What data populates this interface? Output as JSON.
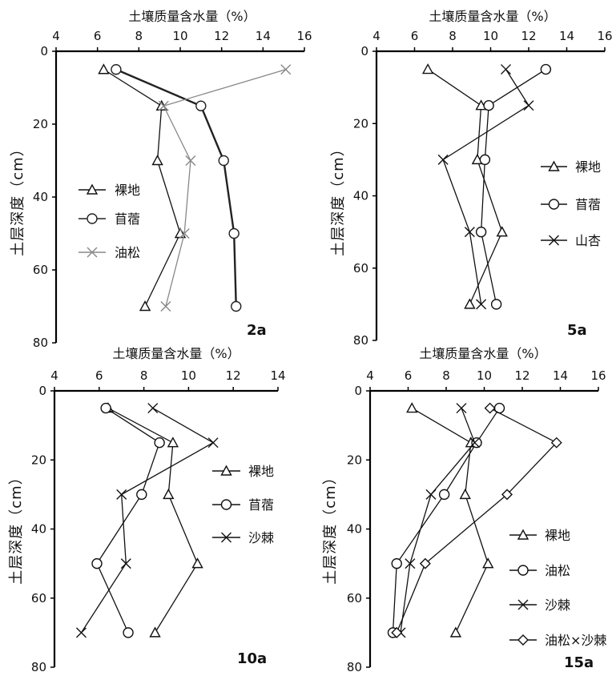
{
  "chart_data": [
    {
      "type": "line",
      "panel_label": "2a",
      "x_axis_title": "土壤质量含水量（%）",
      "y_axis_title": "土层深度（cm）",
      "x_ticks": [
        "4",
        "6",
        "8",
        "10",
        "12",
        "14",
        "16"
      ],
      "y_ticks": [
        "0",
        "20",
        "40",
        "60",
        "80"
      ],
      "xlim": [
        4,
        16
      ],
      "ylim": [
        0,
        80
      ],
      "x_axis_position": "top",
      "y_inverted": true,
      "grid": false,
      "legend_position": "left-middle",
      "series": [
        {
          "name": "裸地",
          "marker": "triangle",
          "color": "#111111",
          "x": [
            6.3,
            9.1,
            8.9,
            10.0,
            8.3
          ],
          "y": [
            5,
            15,
            30,
            50,
            70
          ]
        },
        {
          "name": "苜蓿",
          "marker": "circle",
          "color": "#222222",
          "x": [
            6.9,
            11.0,
            12.1,
            12.6,
            12.7
          ],
          "y": [
            5,
            15,
            30,
            50,
            70
          ]
        },
        {
          "name": "油松",
          "marker": "cross",
          "color": "#888888",
          "x": [
            15.1,
            9.2,
            10.5,
            10.2,
            9.3
          ],
          "y": [
            5,
            15,
            30,
            50,
            70
          ]
        }
      ]
    },
    {
      "type": "line",
      "panel_label": "5a",
      "x_axis_title": "土壤质量含水量（%）",
      "y_axis_title": "土层深度（cm）",
      "x_ticks": [
        "4",
        "6",
        "8",
        "10",
        "12",
        "14",
        "16"
      ],
      "y_ticks": [
        "0",
        "20",
        "40",
        "60",
        "80"
      ],
      "xlim": [
        4,
        16
      ],
      "ylim": [
        0,
        80
      ],
      "x_axis_position": "top",
      "y_inverted": true,
      "grid": false,
      "legend_position": "right-middle",
      "series": [
        {
          "name": "裸地",
          "marker": "triangle",
          "color": "#111111",
          "x": [
            6.7,
            9.5,
            9.3,
            10.6,
            8.9
          ],
          "y": [
            5,
            15,
            30,
            50,
            70
          ]
        },
        {
          "name": "苜蓿",
          "marker": "circle",
          "color": "#111111",
          "x": [
            12.9,
            9.9,
            9.7,
            9.5,
            10.3
          ],
          "y": [
            5,
            15,
            30,
            50,
            70
          ]
        },
        {
          "name": "山杏",
          "marker": "cross",
          "color": "#111111",
          "x": [
            10.8,
            12.0,
            7.5,
            8.9,
            9.5
          ],
          "y": [
            5,
            15,
            30,
            50,
            70
          ]
        }
      ]
    },
    {
      "type": "line",
      "panel_label": "10a",
      "x_axis_title": "土壤质量含水量（%）",
      "y_axis_title": "土层深度（cm）",
      "x_ticks": [
        "4",
        "6",
        "8",
        "10",
        "12",
        "14"
      ],
      "y_ticks": [
        "0",
        "20",
        "40",
        "60",
        "80"
      ],
      "xlim": [
        4,
        14
      ],
      "ylim": [
        0,
        80
      ],
      "x_axis_position": "top",
      "y_inverted": true,
      "grid": false,
      "legend_position": "right-middle",
      "series": [
        {
          "name": "裸地",
          "marker": "triangle",
          "color": "#111111",
          "x": [
            6.4,
            9.3,
            9.1,
            10.4,
            8.5
          ],
          "y": [
            5,
            15,
            30,
            50,
            70
          ]
        },
        {
          "name": "苜蓿",
          "marker": "circle",
          "color": "#111111",
          "x": [
            6.3,
            8.7,
            7.9,
            5.9,
            7.3
          ],
          "y": [
            5,
            15,
            30,
            50,
            70
          ]
        },
        {
          "name": "沙棘",
          "marker": "cross",
          "color": "#111111",
          "x": [
            8.4,
            11.1,
            7.0,
            7.2,
            5.2
          ],
          "y": [
            5,
            15,
            30,
            50,
            70
          ]
        }
      ]
    },
    {
      "type": "line",
      "panel_label": "15a",
      "x_axis_title": "土壤质量含水量（%）",
      "y_axis_title": "土层深度（cm）",
      "x_ticks": [
        "4",
        "6",
        "8",
        "10",
        "12",
        "14",
        "16"
      ],
      "y_ticks": [
        "0",
        "20",
        "40",
        "60",
        "80"
      ],
      "xlim": [
        4,
        16
      ],
      "ylim": [
        0,
        80
      ],
      "x_axis_position": "top",
      "y_inverted": true,
      "grid": false,
      "legend_position": "right-lower",
      "series": [
        {
          "name": "裸地",
          "marker": "triangle",
          "color": "#111111",
          "x": [
            6.2,
            9.3,
            9.0,
            10.2,
            8.5
          ],
          "y": [
            5,
            15,
            30,
            50,
            70
          ]
        },
        {
          "name": "油松",
          "marker": "circle",
          "color": "#111111",
          "x": [
            10.8,
            9.6,
            7.9,
            5.4,
            5.2
          ],
          "y": [
            5,
            15,
            30,
            50,
            70
          ]
        },
        {
          "name": "沙棘",
          "marker": "cross",
          "color": "#111111",
          "x": [
            8.8,
            9.5,
            7.2,
            6.1,
            5.6
          ],
          "y": [
            5,
            15,
            30,
            50,
            70
          ]
        },
        {
          "name": "油松×沙棘",
          "marker": "diamond",
          "color": "#111111",
          "x": [
            10.3,
            13.8,
            11.2,
            6.9,
            5.4
          ],
          "y": [
            5,
            15,
            30,
            50,
            70
          ]
        }
      ]
    }
  ]
}
